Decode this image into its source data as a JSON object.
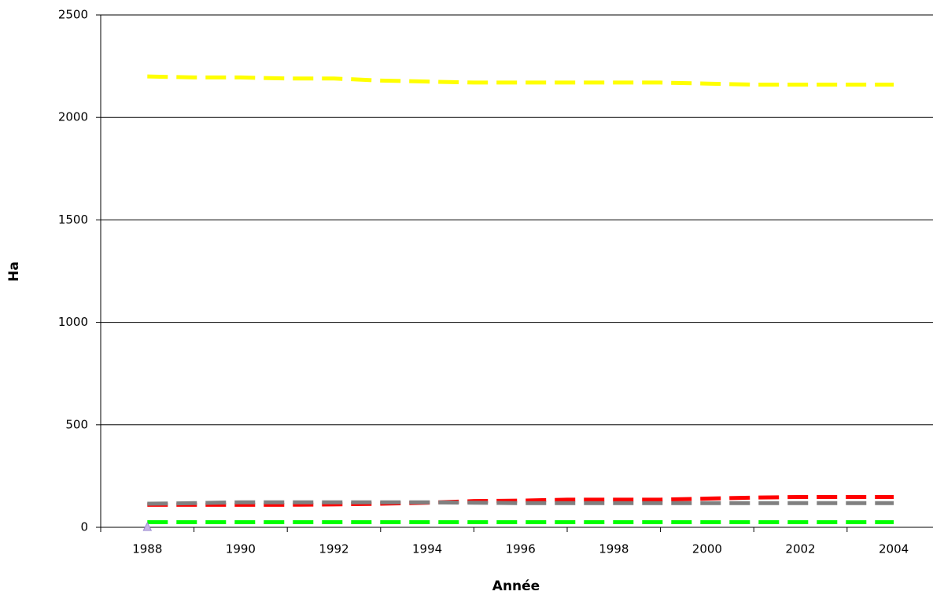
{
  "chart_data": {
    "type": "line",
    "x_label": "Année",
    "y_label": "Ha",
    "categories": [
      "1988",
      null,
      "1990",
      null,
      "1992",
      null,
      "1994",
      null,
      "1996",
      null,
      "1998",
      null,
      "2000",
      null,
      "2002",
      null,
      "2004"
    ],
    "series": [
      {
        "color": "#ffff00",
        "values": [
          2200,
          2195,
          2195,
          2190,
          2190,
          2180,
          2175,
          2170,
          2170,
          2170,
          2170,
          2170,
          2165,
          2160,
          2160,
          2160,
          2160
        ]
      },
      {
        "color": "#ff0000",
        "values": [
          110,
          110,
          110,
          110,
          112,
          115,
          120,
          128,
          130,
          135,
          135,
          135,
          140,
          145,
          148,
          148,
          148
        ]
      },
      {
        "color": "#808080",
        "values": [
          115,
          118,
          122,
          122,
          122,
          122,
          122,
          120,
          118,
          118,
          118,
          118,
          118,
          118,
          118,
          118,
          118
        ]
      },
      {
        "color": "#00ff00",
        "values": [
          25,
          25,
          25,
          25,
          25,
          25,
          25,
          25,
          25,
          25,
          25,
          25,
          25,
          25,
          25,
          25,
          25
        ]
      },
      {
        "color": "#c8b4e6",
        "values": [
          0,
          null,
          null,
          null,
          null,
          null,
          null,
          null,
          null,
          null,
          null,
          null,
          null,
          null,
          null,
          null,
          null
        ]
      }
    ],
    "ylim": [
      0,
      2500
    ],
    "yticks": [
      0,
      500,
      1000,
      1500,
      2000,
      2500
    ],
    "grid": true
  }
}
